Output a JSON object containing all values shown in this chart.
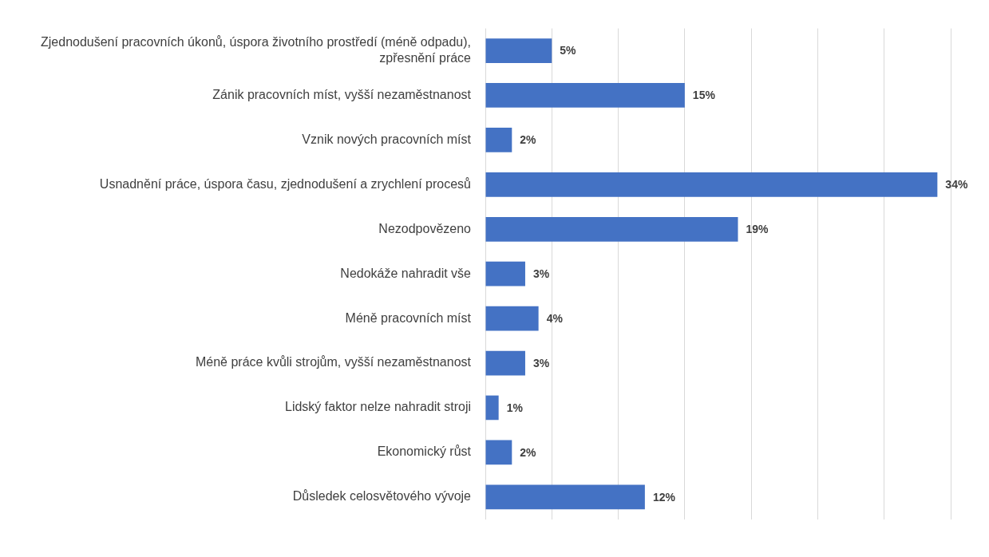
{
  "chart_data": {
    "type": "bar",
    "orientation": "horizontal",
    "categories": [
      "Zjednodušení pracovních úkonů, úspora životního prostředí (méně odpadu), zpřesnění práce",
      "Zánik pracovních míst, vyšší nezaměstnanost",
      "Vznik nových pracovních míst",
      "Usnadnění práce, úspora času, zjednodušení a zrychlení procesů",
      "Nezodpovězeno",
      "Nedokáže nahradit vše",
      "Méně pracovních míst",
      "Méně práce kvůli strojům, vyšší nezaměstnanost",
      "Lidský faktor nelze nahradit stroji",
      "Ekonomický růst",
      "Důsledek celosvětového vývoje"
    ],
    "values": [
      5,
      15,
      2,
      34,
      19,
      3,
      4,
      3,
      1,
      2,
      12
    ],
    "value_labels": [
      "5%",
      "15%",
      "2%",
      "34%",
      "19%",
      "3%",
      "4%",
      "3%",
      "1%",
      "2%",
      "12%"
    ],
    "color": "#4472c4",
    "xlim": [
      0,
      35
    ],
    "xticks": [
      {
        "value": 0,
        "label": null
      },
      {
        "value": 5,
        "label": null
      },
      {
        "value": 10,
        "label": null
      },
      {
        "value": 15,
        "label": null
      },
      {
        "value": 20,
        "label": null
      },
      {
        "value": 25,
        "label": null
      },
      {
        "value": 30,
        "label": null
      },
      {
        "value": 35,
        "label": null
      }
    ],
    "grid": "x",
    "tick_labels": "y",
    "legend": false
  }
}
